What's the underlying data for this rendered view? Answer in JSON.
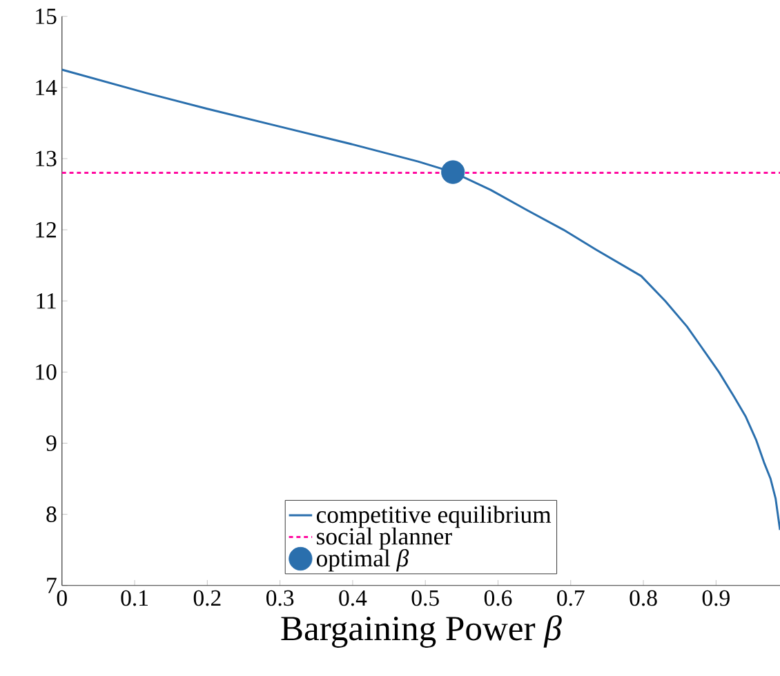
{
  "chart_data": {
    "type": "line",
    "xlabel": "Bargaining Power *β*",
    "xlim": [
      0,
      0.988
    ],
    "ylim": [
      7,
      15
    ],
    "xticks": [
      0,
      0.1,
      0.2,
      0.3,
      0.4,
      0.5,
      0.6,
      0.7,
      0.8,
      0.9
    ],
    "yticks": [
      7,
      8,
      9,
      10,
      11,
      12,
      13,
      14,
      15
    ],
    "legend": "bottom",
    "series": [
      {
        "name": "competitive equilibrium",
        "color": "#2a6fad",
        "x": [
          0,
          0.117,
          0.2,
          0.304,
          0.4,
          0.49,
          0.538,
          0.59,
          0.641,
          0.69,
          0.735,
          0.797,
          0.83,
          0.86,
          0.88,
          0.904,
          0.925,
          0.941,
          0.955,
          0.966,
          0.975,
          0.982,
          0.988
        ],
        "values": [
          14.25,
          13.92,
          13.7,
          13.44,
          13.2,
          12.96,
          12.81,
          12.56,
          12.27,
          12.0,
          11.72,
          11.35,
          11.0,
          10.64,
          10.35,
          10.0,
          9.65,
          9.37,
          9.05,
          8.73,
          8.5,
          8.22,
          7.78
        ]
      },
      {
        "name": "social planner",
        "color": "#ff0aa0",
        "type": "line",
        "line_style": "dashed",
        "x": [
          0,
          0.988
        ],
        "values": [
          12.8,
          12.8
        ]
      },
      {
        "name": "optimal *β*",
        "color": "#2a6fad",
        "type": "scatter",
        "x": [
          0.538
        ],
        "values": [
          12.81
        ]
      }
    ]
  }
}
